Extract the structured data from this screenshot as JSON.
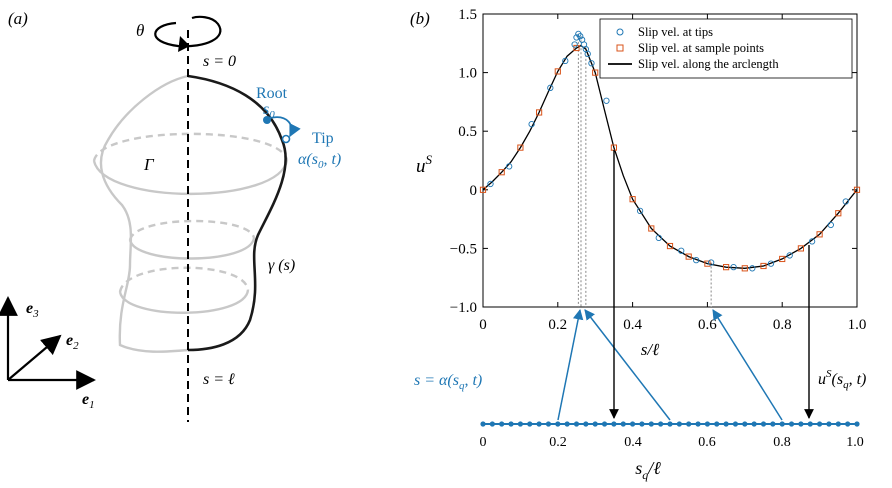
{
  "panel_a": {
    "label": "(a)",
    "theta": "θ",
    "s_top": "s = 0",
    "s_bottom": "s = ℓ",
    "root_label": "Root",
    "s0_label": "s",
    "s0_sub": "0",
    "tip_label": "Tip",
    "tip_expr": "α(s",
    "tip_expr_sub": "0",
    "tip_expr_end": ", t)",
    "gamma_label": "Γ",
    "curve_label": "γ (s)",
    "axis_e1": "e",
    "axis_e1_sub": "1",
    "axis_e2": "e",
    "axis_e2_sub": "2",
    "axis_e3": "e",
    "axis_e3_sub": "3",
    "colors": {
      "body": "#c8c8c8",
      "curve": "#1a1a1a",
      "accent": "#1f77b4"
    }
  },
  "panel_b": {
    "label": "(b)",
    "annot_alpha": "s = α(s",
    "annot_alpha_sub": "q",
    "annot_alpha_end": ", t)",
    "annot_u": "u",
    "annot_u_sup": "S",
    "annot_u_end": "(s",
    "annot_u_sub": "q",
    "annot_u_close": ", t)",
    "bottom_xlabel": "s",
    "bottom_xlabel_sub": "q",
    "bottom_xlabel_end": "/ℓ",
    "bottom_ticks": [
      "0",
      "0.2",
      "0.4",
      "0.6",
      "0.8",
      "1.0"
    ]
  },
  "chart_data": {
    "type": "line",
    "xlabel": "s/ℓ",
    "ylabel": "u",
    "ylabel_sup": "S",
    "xlim": [
      0,
      1
    ],
    "ylim": [
      -1.0,
      1.5
    ],
    "xticks": [
      "0",
      "0.2",
      "0.4",
      "0.6",
      "0.8",
      "1.0"
    ],
    "yticks": [
      "−1.0",
      "−0.5",
      "0",
      "0.5",
      "1.0",
      "1.5"
    ],
    "ytick_values": [
      -1.0,
      -0.5,
      0,
      0.5,
      1.0,
      1.5
    ],
    "xtick_values": [
      0,
      0.2,
      0.4,
      0.6,
      0.8,
      1.0
    ],
    "legend": {
      "placement": "top-right",
      "entries": [
        "Slip vel. at tips",
        "Slip vel. at sample points",
        "Slip vel. along the arclength"
      ]
    },
    "series": [
      {
        "name": "Slip vel. along the arclength",
        "style": "line",
        "color": "#000000",
        "x": [
          0,
          0.025,
          0.05,
          0.075,
          0.1,
          0.125,
          0.15,
          0.175,
          0.2,
          0.225,
          0.25,
          0.262,
          0.275,
          0.3,
          0.325,
          0.35,
          0.375,
          0.4,
          0.45,
          0.5,
          0.55,
          0.6,
          0.65,
          0.7,
          0.75,
          0.8,
          0.85,
          0.9,
          0.95,
          0.975,
          1.0
        ],
        "y": [
          0,
          0.07,
          0.15,
          0.24,
          0.36,
          0.5,
          0.66,
          0.84,
          1.01,
          1.14,
          1.21,
          1.23,
          1.2,
          1.0,
          0.68,
          0.36,
          0.12,
          -0.08,
          -0.33,
          -0.48,
          -0.57,
          -0.63,
          -0.66,
          -0.67,
          -0.65,
          -0.59,
          -0.5,
          -0.38,
          -0.2,
          -0.1,
          0
        ]
      },
      {
        "name": "Slip vel. at sample points",
        "style": "square",
        "color": "#d95319",
        "x": [
          0,
          0.05,
          0.1,
          0.15,
          0.2,
          0.25,
          0.3,
          0.35,
          0.4,
          0.45,
          0.5,
          0.55,
          0.6,
          0.65,
          0.7,
          0.75,
          0.8,
          0.85,
          0.9,
          0.95,
          1.0
        ],
        "y": [
          0,
          0.15,
          0.36,
          0.66,
          1.01,
          1.21,
          1.0,
          0.36,
          -0.08,
          -0.33,
          -0.48,
          -0.57,
          -0.63,
          -0.66,
          -0.67,
          -0.65,
          -0.59,
          -0.5,
          -0.38,
          -0.2,
          0
        ]
      },
      {
        "name": "Slip vel. at tips",
        "style": "circle",
        "color": "#1f77b4",
        "x": [
          0.02,
          0.07,
          0.13,
          0.18,
          0.22,
          0.245,
          0.25,
          0.255,
          0.26,
          0.265,
          0.27,
          0.275,
          0.28,
          0.29,
          0.33,
          0.42,
          0.47,
          0.53,
          0.57,
          0.61,
          0.67,
          0.72,
          0.77,
          0.82,
          0.88,
          0.93,
          0.97
        ],
        "y": [
          0.05,
          0.2,
          0.56,
          0.87,
          1.1,
          1.24,
          1.3,
          1.33,
          1.31,
          1.28,
          1.24,
          1.2,
          1.16,
          1.08,
          0.76,
          -0.18,
          -0.41,
          -0.52,
          -0.6,
          -0.62,
          -0.66,
          -0.67,
          -0.63,
          -0.56,
          -0.44,
          -0.3,
          -0.1
        ]
      }
    ]
  }
}
